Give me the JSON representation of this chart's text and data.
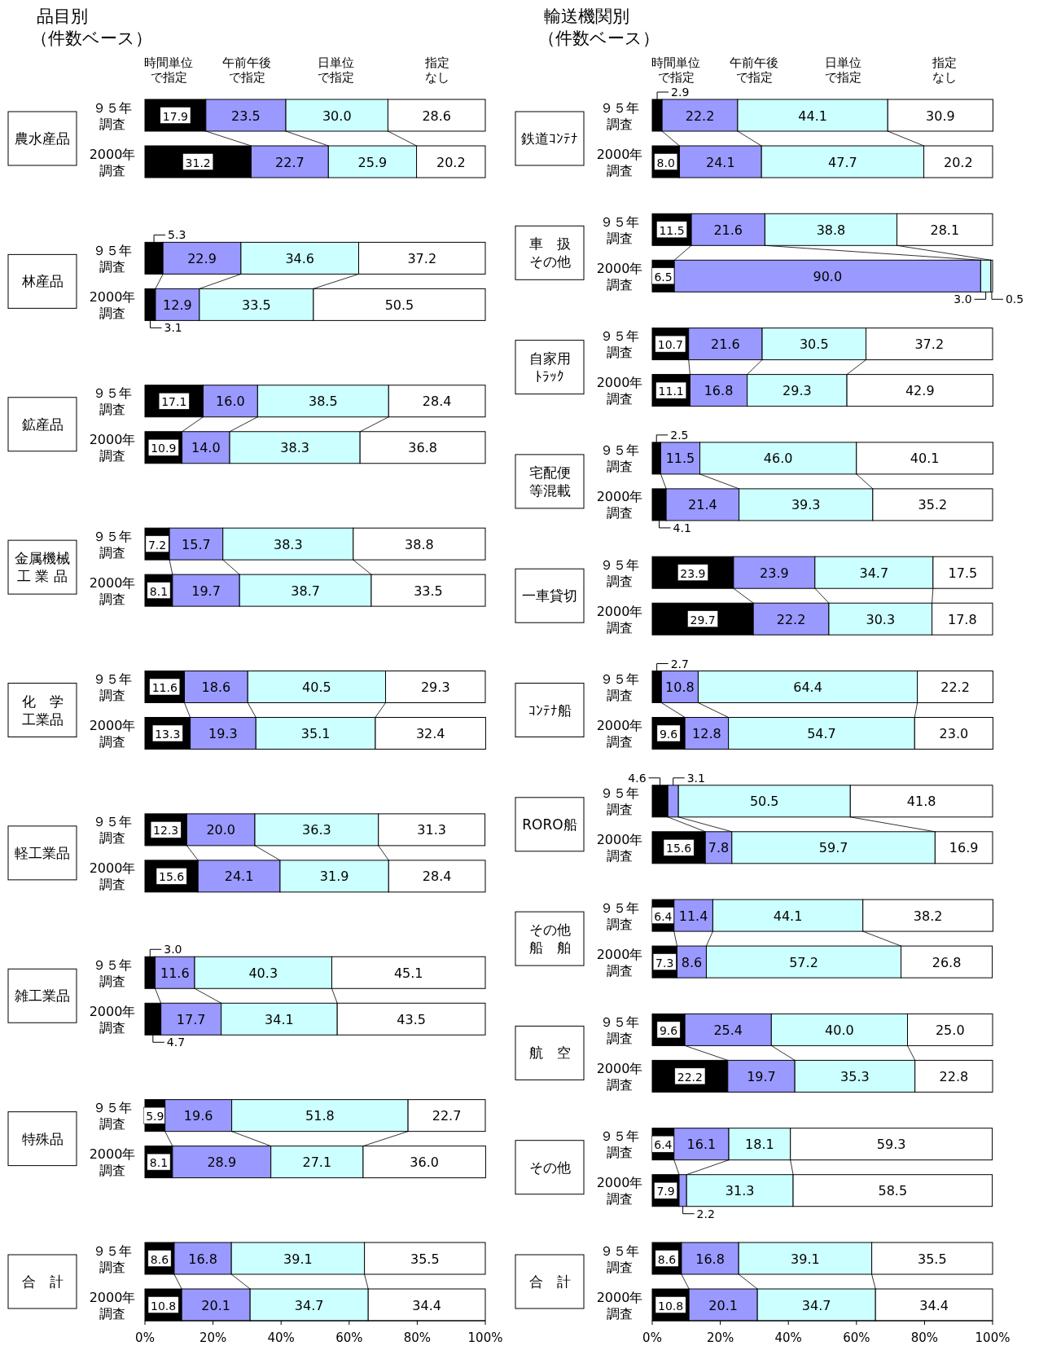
{
  "chart_data": [
    {
      "type": "bar",
      "orientation": "horizontal",
      "stacked": true,
      "title": "品目別",
      "subtitle": "（件数ベース）",
      "legend": "top",
      "ylabel": "農水産品",
      "categories": [
        "９５年調査",
        "2000年調査"
      ],
      "series": [
        {
          "name": "時間単位で指定",
          "color": "#000000",
          "values": [
            17.9,
            31.2
          ],
          "value_labels": [
            "17.9",
            "31.2"
          ]
        },
        {
          "name": "午前午後で指定",
          "color": "#9999ff",
          "values": [
            23.5,
            22.7
          ],
          "value_labels": [
            "23.5",
            "22.7"
          ]
        },
        {
          "name": "日単位で指定",
          "color": "#ccffff",
          "values": [
            30.0,
            25.9
          ],
          "value_labels": [
            "30.0",
            "25.9"
          ]
        },
        {
          "name": "指定なし",
          "color": "#ffffff",
          "values": [
            28.6,
            20.2
          ],
          "value_labels": [
            "28.6",
            "20.2"
          ]
        }
      ],
      "xlim": [
        0,
        100
      ],
      "tick_labels": "y"
    },
    {
      "type": "bar",
      "orientation": "horizontal",
      "stacked": true,
      "ylabel": "林産品",
      "categories": [
        "９５年調査",
        "2000年調査"
      ],
      "series": [
        {
          "color": "#000000",
          "values": [
            5.3,
            3.1
          ],
          "value_labels": [
            "5.3",
            "3.1"
          ]
        },
        {
          "color": "#9999ff",
          "values": [
            22.9,
            12.9
          ],
          "value_labels": [
            "22.9",
            "12.9"
          ]
        },
        {
          "color": "#ccffff",
          "values": [
            34.6,
            33.5
          ],
          "value_labels": [
            "34.6",
            "33.5"
          ]
        },
        {
          "color": "#ffffff",
          "values": [
            37.2,
            50.5
          ],
          "value_labels": [
            "37.2",
            "50.5"
          ]
        }
      ],
      "xlim": [
        0,
        100
      ],
      "tick_labels": "y"
    },
    {
      "type": "bar",
      "orientation": "horizontal",
      "stacked": true,
      "ylabel": "鉱産品",
      "categories": [
        "９５年調査",
        "2000年調査"
      ],
      "series": [
        {
          "color": "#000000",
          "values": [
            17.1,
            10.9
          ],
          "value_labels": [
            "17.1",
            "10.9"
          ]
        },
        {
          "color": "#9999ff",
          "values": [
            16.0,
            14.0
          ],
          "value_labels": [
            "16.0",
            "14.0"
          ]
        },
        {
          "color": "#ccffff",
          "values": [
            38.5,
            38.3
          ],
          "value_labels": [
            "38.5",
            "38.3"
          ]
        },
        {
          "color": "#ffffff",
          "values": [
            28.4,
            36.8
          ],
          "value_labels": [
            "28.4",
            "36.8"
          ]
        }
      ],
      "xlim": [
        0,
        100
      ],
      "tick_labels": "y"
    },
    {
      "type": "bar",
      "orientation": "horizontal",
      "stacked": true,
      "ylabel": "金属機械工 業 品",
      "categories": [
        "９５年調査",
        "2000年調査"
      ],
      "series": [
        {
          "color": "#000000",
          "values": [
            7.2,
            8.1
          ],
          "value_labels": [
            "7.2",
            "8.1"
          ]
        },
        {
          "color": "#9999ff",
          "values": [
            15.7,
            19.7
          ],
          "value_labels": [
            "15.7",
            "19.7"
          ]
        },
        {
          "color": "#ccffff",
          "values": [
            38.3,
            38.7
          ],
          "value_labels": [
            "38.3",
            "38.7"
          ]
        },
        {
          "color": "#ffffff",
          "values": [
            38.8,
            33.5
          ],
          "value_labels": [
            "38.8",
            "33.5"
          ]
        }
      ],
      "xlim": [
        0,
        100
      ],
      "tick_labels": "y"
    },
    {
      "type": "bar",
      "orientation": "horizontal",
      "stacked": true,
      "ylabel": "化　学工業品",
      "categories": [
        "９５年調査",
        "2000年調査"
      ],
      "series": [
        {
          "color": "#000000",
          "values": [
            11.6,
            13.3
          ],
          "value_labels": [
            "11.6",
            "13.3"
          ]
        },
        {
          "color": "#9999ff",
          "values": [
            18.6,
            19.3
          ],
          "value_labels": [
            "18.6",
            "19.3"
          ]
        },
        {
          "color": "#ccffff",
          "values": [
            40.5,
            35.1
          ],
          "value_labels": [
            "40.5",
            "35.1"
          ]
        },
        {
          "color": "#ffffff",
          "values": [
            29.3,
            32.4
          ],
          "value_labels": [
            "29.3",
            "32.4"
          ]
        }
      ],
      "xlim": [
        0,
        100
      ],
      "tick_labels": "y"
    },
    {
      "type": "bar",
      "orientation": "horizontal",
      "stacked": true,
      "ylabel": "軽工業品",
      "categories": [
        "９５年調査",
        "2000年調査"
      ],
      "series": [
        {
          "color": "#000000",
          "values": [
            12.3,
            15.6
          ],
          "value_labels": [
            "12.3",
            "15.6"
          ]
        },
        {
          "color": "#9999ff",
          "values": [
            20.0,
            24.1
          ],
          "value_labels": [
            "20.0",
            "24.1"
          ]
        },
        {
          "color": "#ccffff",
          "values": [
            36.3,
            31.9
          ],
          "value_labels": [
            "36.3",
            "31.9"
          ]
        },
        {
          "color": "#ffffff",
          "values": [
            31.3,
            28.4
          ],
          "value_labels": [
            "31.3",
            "28.4"
          ]
        }
      ],
      "xlim": [
        0,
        100
      ],
      "tick_labels": "y"
    },
    {
      "type": "bar",
      "orientation": "horizontal",
      "stacked": true,
      "ylabel": "雑工業品",
      "categories": [
        "９５年調査",
        "2000年調査"
      ],
      "series": [
        {
          "color": "#000000",
          "values": [
            3.0,
            4.7
          ],
          "value_labels": [
            "3.0",
            "4.7"
          ]
        },
        {
          "color": "#9999ff",
          "values": [
            11.6,
            17.7
          ],
          "value_labels": [
            "11.6",
            "17.7"
          ]
        },
        {
          "color": "#ccffff",
          "values": [
            40.3,
            34.1
          ],
          "value_labels": [
            "40.3",
            "34.1"
          ]
        },
        {
          "color": "#ffffff",
          "values": [
            45.1,
            43.5
          ],
          "value_labels": [
            "45.1",
            "43.5"
          ]
        }
      ],
      "xlim": [
        0,
        100
      ],
      "tick_labels": "y"
    },
    {
      "type": "bar",
      "orientation": "horizontal",
      "stacked": true,
      "ylabel": "特殊品",
      "categories": [
        "９５年調査",
        "2000年調査"
      ],
      "series": [
        {
          "color": "#000000",
          "values": [
            5.9,
            8.1
          ],
          "value_labels": [
            "5.9",
            "8.1"
          ]
        },
        {
          "color": "#9999ff",
          "values": [
            19.6,
            28.9
          ],
          "value_labels": [
            "19.6",
            "28.9"
          ]
        },
        {
          "color": "#ccffff",
          "values": [
            51.8,
            27.1
          ],
          "value_labels": [
            "51.8",
            "27.1"
          ]
        },
        {
          "color": "#ffffff",
          "values": [
            22.7,
            36.0
          ],
          "value_labels": [
            "22.7",
            "36.0"
          ]
        }
      ],
      "xlim": [
        0,
        100
      ],
      "tick_labels": "y"
    },
    {
      "type": "bar",
      "orientation": "horizontal",
      "stacked": true,
      "ylabel": "合　計",
      "categories": [
        "９５年調査",
        "2000年調査"
      ],
      "series": [
        {
          "color": "#000000",
          "values": [
            8.6,
            10.8
          ],
          "value_labels": [
            "8.6",
            "10.8"
          ]
        },
        {
          "color": "#9999ff",
          "values": [
            16.8,
            20.1
          ],
          "value_labels": [
            "16.8",
            "20.1"
          ]
        },
        {
          "color": "#ccffff",
          "values": [
            39.1,
            34.7
          ],
          "value_labels": [
            "39.1",
            "34.7"
          ]
        },
        {
          "color": "#ffffff",
          "values": [
            35.5,
            34.4
          ],
          "value_labels": [
            "35.5",
            "34.4"
          ]
        }
      ],
      "xlim": [
        0,
        100
      ],
      "xticks": [
        {
          "value": 0,
          "label": "0%"
        },
        {
          "value": 20,
          "label": "20%"
        },
        {
          "value": 40,
          "label": "40%"
        },
        {
          "value": 60,
          "label": "60%"
        },
        {
          "value": 80,
          "label": "80%"
        },
        {
          "value": 100,
          "label": "100%"
        }
      ]
    },
    {
      "type": "bar",
      "orientation": "horizontal",
      "stacked": true,
      "title": "輸送機関別",
      "subtitle": "（件数ベース）",
      "legend": "top",
      "ylabel": "鉄道ｺﾝﾃﾅ",
      "categories": [
        "９５年調査",
        "2000年調査"
      ],
      "series": [
        {
          "name": "時間単位で指定",
          "color": "#000000",
          "values": [
            2.9,
            8.0
          ],
          "value_labels": [
            "2.9",
            "8.0"
          ]
        },
        {
          "name": "午前午後で指定",
          "color": "#9999ff",
          "values": [
            22.2,
            24.1
          ],
          "value_labels": [
            "22.2",
            "24.1"
          ]
        },
        {
          "name": "日単位で指定",
          "color": "#ccffff",
          "values": [
            44.1,
            47.7
          ],
          "value_labels": [
            "44.1",
            "47.7"
          ]
        },
        {
          "name": "指定なし",
          "color": "#ffffff",
          "values": [
            30.9,
            20.2
          ],
          "value_labels": [
            "30.9",
            "20.2"
          ]
        }
      ],
      "xlim": [
        0,
        100
      ],
      "tick_labels": "y"
    },
    {
      "type": "bar",
      "orientation": "horizontal",
      "stacked": true,
      "ylabel": "車　扱その他",
      "categories": [
        "９５年調査",
        "2000年調査"
      ],
      "series": [
        {
          "color": "#000000",
          "values": [
            11.5,
            6.5
          ],
          "value_labels": [
            "11.5",
            "6.5"
          ]
        },
        {
          "color": "#9999ff",
          "values": [
            21.6,
            90.0
          ],
          "value_labels": [
            "21.6",
            "90.0"
          ]
        },
        {
          "color": "#ccffff",
          "values": [
            38.8,
            3.0
          ],
          "value_labels": [
            "38.8",
            "3.0"
          ]
        },
        {
          "color": "#ffffff",
          "values": [
            28.1,
            0.5
          ],
          "value_labels": [
            "28.1",
            "0.5"
          ]
        }
      ],
      "xlim": [
        0,
        100
      ],
      "tick_labels": "y"
    },
    {
      "type": "bar",
      "orientation": "horizontal",
      "stacked": true,
      "ylabel": "自家用ﾄﾗｯｸ",
      "categories": [
        "９５年調査",
        "2000年調査"
      ],
      "series": [
        {
          "color": "#000000",
          "values": [
            10.7,
            11.1
          ],
          "value_labels": [
            "10.7",
            "11.1"
          ]
        },
        {
          "color": "#9999ff",
          "values": [
            21.6,
            16.8
          ],
          "value_labels": [
            "21.6",
            "16.8"
          ]
        },
        {
          "color": "#ccffff",
          "values": [
            30.5,
            29.3
          ],
          "value_labels": [
            "30.5",
            "29.3"
          ]
        },
        {
          "color": "#ffffff",
          "values": [
            37.2,
            42.9
          ],
          "value_labels": [
            "37.2",
            "42.9"
          ]
        }
      ],
      "xlim": [
        0,
        100
      ],
      "tick_labels": "y"
    },
    {
      "type": "bar",
      "orientation": "horizontal",
      "stacked": true,
      "ylabel": "宅配便等混載",
      "categories": [
        "９５年調査",
        "2000年調査"
      ],
      "series": [
        {
          "color": "#000000",
          "values": [
            2.5,
            4.1
          ],
          "value_labels": [
            "2.5",
            "4.1"
          ]
        },
        {
          "color": "#9999ff",
          "values": [
            11.5,
            21.4
          ],
          "value_labels": [
            "11.5",
            "21.4"
          ]
        },
        {
          "color": "#ccffff",
          "values": [
            46.0,
            39.3
          ],
          "value_labels": [
            "46.0",
            "39.3"
          ]
        },
        {
          "color": "#ffffff",
          "values": [
            40.1,
            35.2
          ],
          "value_labels": [
            "40.1",
            "35.2"
          ]
        }
      ],
      "xlim": [
        0,
        100
      ],
      "tick_labels": "y"
    },
    {
      "type": "bar",
      "orientation": "horizontal",
      "stacked": true,
      "ylabel": "一車貸切",
      "categories": [
        "９５年調査",
        "2000年調査"
      ],
      "series": [
        {
          "color": "#000000",
          "values": [
            23.9,
            29.7
          ],
          "value_labels": [
            "23.9",
            "29.7"
          ]
        },
        {
          "color": "#9999ff",
          "values": [
            23.9,
            22.2
          ],
          "value_labels": [
            "23.9",
            "22.2"
          ]
        },
        {
          "color": "#ccffff",
          "values": [
            34.7,
            30.3
          ],
          "value_labels": [
            "34.7",
            "30.3"
          ]
        },
        {
          "color": "#ffffff",
          "values": [
            17.5,
            17.8
          ],
          "value_labels": [
            "17.5",
            "17.8"
          ]
        }
      ],
      "xlim": [
        0,
        100
      ],
      "tick_labels": "y"
    },
    {
      "type": "bar",
      "orientation": "horizontal",
      "stacked": true,
      "ylabel": "ｺﾝﾃﾅ船",
      "categories": [
        "９５年調査",
        "2000年調査"
      ],
      "series": [
        {
          "color": "#000000",
          "values": [
            2.7,
            9.6
          ],
          "value_labels": [
            "2.7",
            "9.6"
          ]
        },
        {
          "color": "#9999ff",
          "values": [
            10.8,
            12.8
          ],
          "value_labels": [
            "10.8",
            "12.8"
          ]
        },
        {
          "color": "#ccffff",
          "values": [
            64.4,
            54.7
          ],
          "value_labels": [
            "64.4",
            "54.7"
          ]
        },
        {
          "color": "#ffffff",
          "values": [
            22.2,
            23.0
          ],
          "value_labels": [
            "22.2",
            "23.0"
          ]
        }
      ],
      "xlim": [
        0,
        100
      ],
      "tick_labels": "y"
    },
    {
      "type": "bar",
      "orientation": "horizontal",
      "stacked": true,
      "ylabel": "RORO船",
      "categories": [
        "９５年調査",
        "2000年調査"
      ],
      "series": [
        {
          "color": "#000000",
          "values": [
            4.6,
            15.6
          ],
          "value_labels": [
            "4.6",
            "15.6"
          ]
        },
        {
          "color": "#9999ff",
          "values": [
            3.1,
            7.8
          ],
          "value_labels": [
            "3.1",
            "7.8"
          ]
        },
        {
          "color": "#ccffff",
          "values": [
            50.5,
            59.7
          ],
          "value_labels": [
            "50.5",
            "59.7"
          ]
        },
        {
          "color": "#ffffff",
          "values": [
            41.8,
            16.9
          ],
          "value_labels": [
            "41.8",
            "16.9"
          ]
        }
      ],
      "xlim": [
        0,
        100
      ],
      "tick_labels": "y"
    },
    {
      "type": "bar",
      "orientation": "horizontal",
      "stacked": true,
      "ylabel": "その他船　舶",
      "categories": [
        "９５年調査",
        "2000年調査"
      ],
      "series": [
        {
          "color": "#000000",
          "values": [
            6.4,
            7.3
          ],
          "value_labels": [
            "6.4",
            "7.3"
          ]
        },
        {
          "color": "#9999ff",
          "values": [
            11.4,
            8.6
          ],
          "value_labels": [
            "11.4",
            "8.6"
          ]
        },
        {
          "color": "#ccffff",
          "values": [
            44.1,
            57.2
          ],
          "value_labels": [
            "44.1",
            "57.2"
          ]
        },
        {
          "color": "#ffffff",
          "values": [
            38.2,
            26.8
          ],
          "value_labels": [
            "38.2",
            "26.8"
          ]
        }
      ],
      "xlim": [
        0,
        100
      ],
      "tick_labels": "y"
    },
    {
      "type": "bar",
      "orientation": "horizontal",
      "stacked": true,
      "ylabel": "航　空",
      "categories": [
        "９５年調査",
        "2000年調査"
      ],
      "series": [
        {
          "color": "#000000",
          "values": [
            9.6,
            22.2
          ],
          "value_labels": [
            "9.6",
            "22.2"
          ]
        },
        {
          "color": "#9999ff",
          "values": [
            25.4,
            19.7
          ],
          "value_labels": [
            "25.4",
            "19.7"
          ]
        },
        {
          "color": "#ccffff",
          "values": [
            40.0,
            35.3
          ],
          "value_labels": [
            "40.0",
            "35.3"
          ]
        },
        {
          "color": "#ffffff",
          "values": [
            25.0,
            22.8
          ],
          "value_labels": [
            "25.0",
            "22.8"
          ]
        }
      ],
      "xlim": [
        0,
        100
      ],
      "tick_labels": "y"
    },
    {
      "type": "bar",
      "orientation": "horizontal",
      "stacked": true,
      "ylabel": "その他",
      "categories": [
        "９５年調査",
        "2000年調査"
      ],
      "series": [
        {
          "color": "#000000",
          "values": [
            6.4,
            7.9
          ],
          "value_labels": [
            "6.4",
            "7.9"
          ]
        },
        {
          "color": "#9999ff",
          "values": [
            16.1,
            2.2
          ],
          "value_labels": [
            "16.1",
            "2.2"
          ]
        },
        {
          "color": "#ccffff",
          "values": [
            18.1,
            31.3
          ],
          "value_labels": [
            "18.1",
            "31.3"
          ]
        },
        {
          "color": "#ffffff",
          "values": [
            59.3,
            58.5
          ],
          "value_labels": [
            "59.3",
            "58.5"
          ]
        }
      ],
      "xlim": [
        0,
        100
      ],
      "tick_labels": "y"
    },
    {
      "type": "bar",
      "orientation": "horizontal",
      "stacked": true,
      "ylabel": "合　計",
      "categories": [
        "９５年調査",
        "2000年調査"
      ],
      "series": [
        {
          "color": "#000000",
          "values": [
            8.6,
            10.8
          ],
          "value_labels": [
            "8.6",
            "10.8"
          ]
        },
        {
          "color": "#9999ff",
          "values": [
            16.8,
            20.1
          ],
          "value_labels": [
            "16.8",
            "20.1"
          ]
        },
        {
          "color": "#ccffff",
          "values": [
            39.1,
            34.7
          ],
          "value_labels": [
            "39.1",
            "34.7"
          ]
        },
        {
          "color": "#ffffff",
          "values": [
            35.5,
            34.4
          ],
          "value_labels": [
            "35.5",
            "34.4"
          ]
        }
      ],
      "xlim": [
        0,
        100
      ],
      "xticks": [
        {
          "value": 0,
          "label": "0%"
        },
        {
          "value": 20,
          "label": "20%"
        },
        {
          "value": 40,
          "label": "40%"
        },
        {
          "value": 60,
          "label": "60%"
        },
        {
          "value": 80,
          "label": "80%"
        },
        {
          "value": 100,
          "label": "100%"
        }
      ]
    }
  ]
}
